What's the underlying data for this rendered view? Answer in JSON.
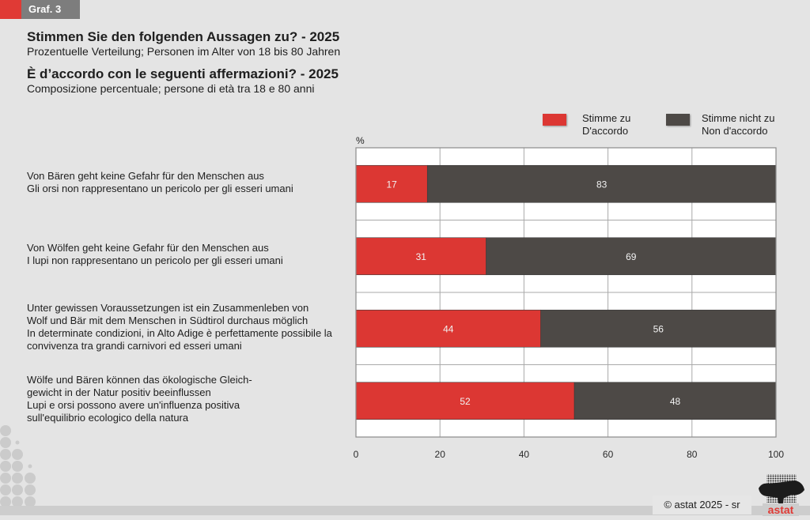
{
  "badge": {
    "label": "Graf. 3"
  },
  "header": {
    "title_de": "Stimmen Sie den folgenden Aussagen zu? - 2025",
    "subtitle_de": "Prozentuelle Verteilung; Personen im Alter von 18 bis 80 Jahren",
    "title_it": "È d’accordo con le seguenti affermazioni? - 2025",
    "subtitle_it": "Composizione percentuale; persone di età tra 18 e 80 anni"
  },
  "footer": {
    "copyright": "©  astat 2025 - sr",
    "logo_text": "astat"
  },
  "chart_data": {
    "type": "bar",
    "orientation": "horizontal",
    "stacked": true,
    "title": "Stimmen Sie den folgenden Aussagen zu? - 2025 / È d’accordo con le seguenti affermazioni? - 2025",
    "xlabel": "%",
    "ylabel": "",
    "xlim": [
      0,
      100
    ],
    "xticks": [
      0,
      20,
      40,
      60,
      80,
      100
    ],
    "grid": true,
    "legend_position": "top-right",
    "categories": [
      [
        "Von Bären geht keine Gefahr für den Menschen aus",
        "Gli orsi non rappresentano un pericolo per gli esseri umani"
      ],
      [
        "Von Wölfen geht keine Gefahr für den Menschen aus",
        "I lupi non rappresentano un pericolo per gli esseri umani"
      ],
      [
        "Unter gewissen Voraussetzungen ist ein Zusammenleben von",
        "Wolf und Bär mit dem Menschen in Südtirol durchaus möglich",
        "In determinate condizioni, in Alto Adige è perfettamente possibile la",
        "convivenza tra grandi carnivori ed esseri umani"
      ],
      [
        "Wölfe und Bären können das ökologische Gleich-",
        "gewicht in der Natur positiv beeinflussen",
        "Lupi e orsi possono avere un'influenza positiva",
        "sull'equilibrio ecologico della natura"
      ]
    ],
    "series": [
      {
        "name": [
          "Stimme zu",
          "D'accordo"
        ],
        "color": "#dc3733",
        "values": [
          17,
          31,
          44,
          52
        ]
      },
      {
        "name": [
          "Stimme nicht zu",
          "Non d'accordo"
        ],
        "color": "#4d4946",
        "values": [
          83,
          69,
          56,
          48
        ]
      }
    ]
  }
}
